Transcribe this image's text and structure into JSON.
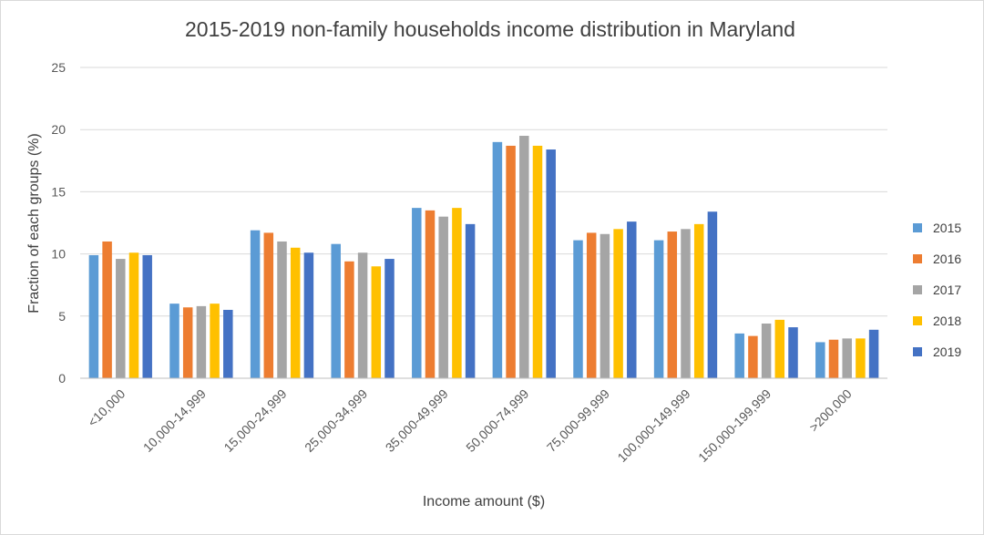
{
  "chart_data": {
    "type": "bar",
    "title": "2015-2019 non-family households income distribution in Maryland",
    "xlabel": "Income amount ($)",
    "ylabel": "Fraction of each groups (%)",
    "ylim": [
      0,
      25
    ],
    "yticks": [
      0,
      5,
      10,
      15,
      20,
      25
    ],
    "grid": true,
    "legend_position": "right",
    "categories": [
      "<10,000",
      "10,000-14,999",
      "15,000-24,999",
      "25,000-34,999",
      "35,000-49,999",
      "50,000-74,999",
      "75,000-99,999",
      "100,000-149,999",
      "150,000-199,999",
      ">200,000"
    ],
    "series": [
      {
        "name": "2015",
        "color": "#5b9bd5",
        "values": [
          9.9,
          6.0,
          11.9,
          10.8,
          13.7,
          19.0,
          11.1,
          11.1,
          3.6,
          2.9
        ]
      },
      {
        "name": "2016",
        "color": "#ed7d31",
        "values": [
          11.0,
          5.7,
          11.7,
          9.4,
          13.5,
          18.7,
          11.7,
          11.8,
          3.4,
          3.1
        ]
      },
      {
        "name": "2017",
        "color": "#a5a5a5",
        "values": [
          9.6,
          5.8,
          11.0,
          10.1,
          13.0,
          19.5,
          11.6,
          12.0,
          4.4,
          3.2
        ]
      },
      {
        "name": "2018",
        "color": "#ffc000",
        "values": [
          10.1,
          6.0,
          10.5,
          9.0,
          13.7,
          18.7,
          12.0,
          12.4,
          4.7,
          3.2
        ]
      },
      {
        "name": "2019",
        "color": "#4472c4",
        "values": [
          9.9,
          5.5,
          10.1,
          9.6,
          12.4,
          18.4,
          12.6,
          13.4,
          4.1,
          3.9
        ]
      }
    ]
  }
}
